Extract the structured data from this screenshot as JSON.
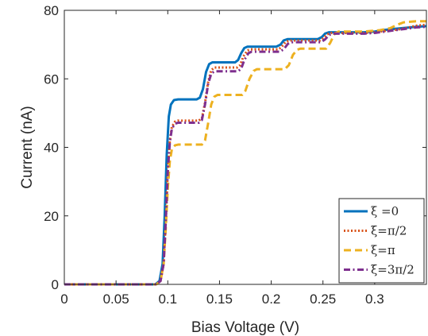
{
  "chart_data": {
    "type": "line",
    "title": "",
    "xlabel": "Bias Voltage (V)",
    "ylabel": "Current (nA)",
    "xlim": [
      0,
      0.35
    ],
    "ylim": [
      0,
      80
    ],
    "xticks": [
      0,
      0.05,
      0.1,
      0.15,
      0.2,
      0.25,
      0.3
    ],
    "xtick_labels": [
      "0",
      "0.05",
      "0.1",
      "0.15",
      "0.2",
      "0.25",
      "0.3"
    ],
    "yticks": [
      0,
      20,
      40,
      60,
      80
    ],
    "ytick_labels": [
      "0",
      "20",
      "40",
      "60",
      "80"
    ],
    "grid": false,
    "legend_position": "bottom-right",
    "series": [
      {
        "name": "ξ =0",
        "color": "#0072BD",
        "dash": "solid",
        "points": [
          [
            0,
            0
          ],
          [
            0.088,
            0
          ],
          [
            0.092,
            1
          ],
          [
            0.095,
            6
          ],
          [
            0.097,
            20
          ],
          [
            0.099,
            38
          ],
          [
            0.101,
            49
          ],
          [
            0.103,
            52.5
          ],
          [
            0.106,
            53.8
          ],
          [
            0.11,
            54
          ],
          [
            0.128,
            54
          ],
          [
            0.131,
            54.5
          ],
          [
            0.134,
            57
          ],
          [
            0.137,
            62
          ],
          [
            0.14,
            64.3
          ],
          [
            0.143,
            64.8
          ],
          [
            0.165,
            64.8
          ],
          [
            0.168,
            65.5
          ],
          [
            0.171,
            67.5
          ],
          [
            0.174,
            69
          ],
          [
            0.177,
            69.4
          ],
          [
            0.205,
            69.4
          ],
          [
            0.209,
            70
          ],
          [
            0.212,
            71.2
          ],
          [
            0.216,
            71.6
          ],
          [
            0.245,
            71.6
          ],
          [
            0.249,
            72.2
          ],
          [
            0.252,
            73.2
          ],
          [
            0.256,
            73.6
          ],
          [
            0.29,
            73.6
          ],
          [
            0.3,
            73.8
          ],
          [
            0.31,
            74.3
          ],
          [
            0.32,
            74.6
          ],
          [
            0.33,
            74.9
          ],
          [
            0.34,
            75.2
          ],
          [
            0.35,
            75.4
          ]
        ]
      },
      {
        "name": "ξ=π/2",
        "color": "#D95319",
        "dash": "dotted",
        "points": [
          [
            0,
            0
          ],
          [
            0.089,
            0
          ],
          [
            0.093,
            1
          ],
          [
            0.096,
            6
          ],
          [
            0.098,
            18
          ],
          [
            0.1,
            33
          ],
          [
            0.102,
            42
          ],
          [
            0.104,
            46
          ],
          [
            0.107,
            47.5
          ],
          [
            0.11,
            47.8
          ],
          [
            0.13,
            47.8
          ],
          [
            0.133,
            48.5
          ],
          [
            0.136,
            53
          ],
          [
            0.139,
            59
          ],
          [
            0.142,
            62.5
          ],
          [
            0.145,
            63.3
          ],
          [
            0.167,
            63.3
          ],
          [
            0.17,
            64
          ],
          [
            0.173,
            66.5
          ],
          [
            0.177,
            68.3
          ],
          [
            0.18,
            68.6
          ],
          [
            0.207,
            68.6
          ],
          [
            0.21,
            69.3
          ],
          [
            0.214,
            70.8
          ],
          [
            0.218,
            71.2
          ],
          [
            0.247,
            71.2
          ],
          [
            0.25,
            71.8
          ],
          [
            0.254,
            73
          ],
          [
            0.258,
            73.4
          ],
          [
            0.29,
            73.4
          ],
          [
            0.3,
            73.6
          ],
          [
            0.31,
            74
          ],
          [
            0.32,
            74.3
          ],
          [
            0.33,
            74.8
          ],
          [
            0.34,
            75.5
          ],
          [
            0.35,
            75.8
          ]
        ]
      },
      {
        "name": "ξ=π",
        "color": "#EDB120",
        "dash": "dashed",
        "points": [
          [
            0,
            0
          ],
          [
            0.089,
            0
          ],
          [
            0.093,
            1
          ],
          [
            0.096,
            6
          ],
          [
            0.098,
            16
          ],
          [
            0.1,
            28
          ],
          [
            0.102,
            36
          ],
          [
            0.104,
            39.5
          ],
          [
            0.107,
            40.6
          ],
          [
            0.11,
            40.8
          ],
          [
            0.133,
            40.8
          ],
          [
            0.136,
            42
          ],
          [
            0.139,
            47
          ],
          [
            0.142,
            52.5
          ],
          [
            0.145,
            54.8
          ],
          [
            0.148,
            55.3
          ],
          [
            0.172,
            55.3
          ],
          [
            0.175,
            56.5
          ],
          [
            0.179,
            60
          ],
          [
            0.183,
            62.3
          ],
          [
            0.186,
            62.8
          ],
          [
            0.213,
            62.8
          ],
          [
            0.217,
            64
          ],
          [
            0.221,
            67
          ],
          [
            0.225,
            68.5
          ],
          [
            0.228,
            68.8
          ],
          [
            0.253,
            68.8
          ],
          [
            0.257,
            70.5
          ],
          [
            0.261,
            73
          ],
          [
            0.265,
            73.8
          ],
          [
            0.29,
            73.8
          ],
          [
            0.305,
            74.2
          ],
          [
            0.315,
            74.8
          ],
          [
            0.322,
            75.8
          ],
          [
            0.328,
            76.5
          ],
          [
            0.34,
            76.8
          ],
          [
            0.35,
            76.8
          ]
        ]
      },
      {
        "name": "ξ=3π/2",
        "color": "#7E2F8E",
        "dash": "dashdot",
        "points": [
          [
            0,
            0
          ],
          [
            0.089,
            0
          ],
          [
            0.093,
            1
          ],
          [
            0.096,
            6
          ],
          [
            0.098,
            18
          ],
          [
            0.1,
            33
          ],
          [
            0.102,
            41.5
          ],
          [
            0.104,
            45.5
          ],
          [
            0.107,
            46.9
          ],
          [
            0.11,
            47.2
          ],
          [
            0.13,
            47.2
          ],
          [
            0.133,
            48
          ],
          [
            0.136,
            52.5
          ],
          [
            0.139,
            58.5
          ],
          [
            0.142,
            61.5
          ],
          [
            0.145,
            62.2
          ],
          [
            0.168,
            62.2
          ],
          [
            0.171,
            63
          ],
          [
            0.174,
            65.5
          ],
          [
            0.178,
            67.5
          ],
          [
            0.181,
            67.9
          ],
          [
            0.208,
            67.9
          ],
          [
            0.212,
            68.6
          ],
          [
            0.216,
            70.2
          ],
          [
            0.219,
            70.7
          ],
          [
            0.248,
            70.7
          ],
          [
            0.252,
            71.5
          ],
          [
            0.256,
            72.8
          ],
          [
            0.259,
            73.2
          ],
          [
            0.29,
            73.2
          ],
          [
            0.3,
            73.4
          ],
          [
            0.31,
            73.8
          ],
          [
            0.32,
            74.2
          ],
          [
            0.33,
            74.6
          ],
          [
            0.34,
            75
          ],
          [
            0.35,
            75.2
          ]
        ]
      }
    ]
  }
}
